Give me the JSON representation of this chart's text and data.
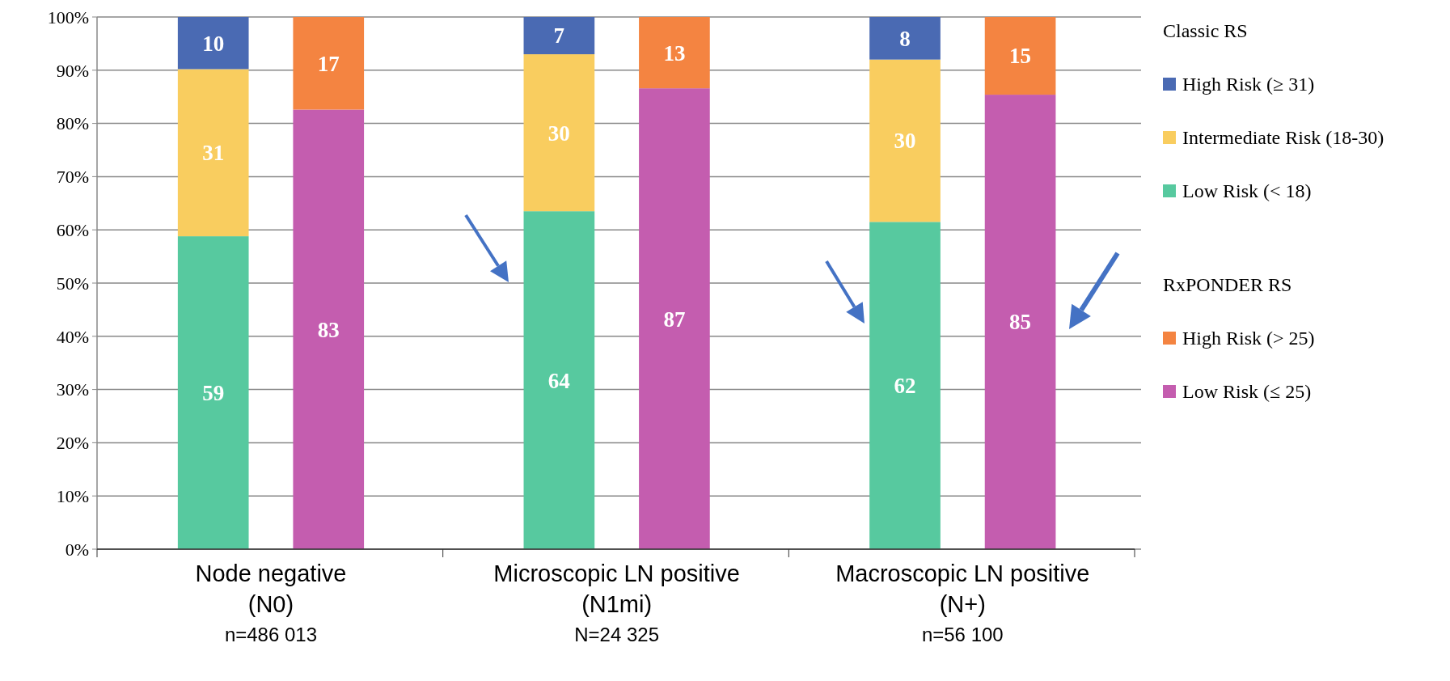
{
  "chart_data": {
    "type": "bar",
    "stacked": true,
    "categories": [
      "Node negative\n(N0)\nn=486 013",
      null,
      null,
      "Microscopic LN positive\n(N1mi)\nN=24 325",
      null,
      null,
      "Macroscopic LN positive\n(N+)\nn=56 100",
      null,
      null
    ],
    "series": [
      {
        "name": "Low Risk (< 18)",
        "color": "#57c99f",
        "values": [
          58.8,
          null,
          null,
          63.5,
          null,
          null,
          61.5,
          null,
          null
        ],
        "value_labels": [
          "59",
          null,
          null,
          "64",
          null,
          null,
          "62",
          null,
          null
        ]
      },
      {
        "name": "Intermediate Risk (18-30)",
        "color": "#f9cd5f",
        "values": [
          31.4,
          null,
          null,
          29.5,
          null,
          null,
          30.5,
          null,
          null
        ],
        "value_labels": [
          "31",
          null,
          null,
          "30",
          null,
          null,
          "30",
          null,
          null
        ]
      },
      {
        "name": "High Risk (≥ 31)",
        "color": "#4a6ab3",
        "values": [
          9.8,
          null,
          null,
          7.0,
          null,
          null,
          8.0,
          null,
          null
        ],
        "value_labels": [
          "10",
          null,
          null,
          "7",
          null,
          null,
          "8",
          null,
          null
        ]
      },
      {
        "name": "Low Risk (≤ 25)",
        "color": "#c45daf",
        "values": [
          null,
          82.6,
          null,
          null,
          86.6,
          null,
          null,
          85.4,
          null
        ],
        "value_labels": [
          null,
          "83",
          null,
          null,
          "87",
          null,
          null,
          "85",
          null
        ]
      },
      {
        "name": "High Risk (> 25)",
        "color": "#f48441",
        "values": [
          null,
          17.4,
          null,
          null,
          13.4,
          null,
          null,
          14.6,
          null
        ],
        "value_labels": [
          null,
          "17",
          null,
          null,
          "13",
          null,
          null,
          "15",
          null
        ]
      }
    ],
    "ylim": [
      0,
      100
    ],
    "yticks": [
      {
        "value": 0,
        "label": "0%"
      },
      {
        "value": 10,
        "label": "10%"
      },
      {
        "value": 20,
        "label": "20%"
      },
      {
        "value": 30,
        "label": "30%"
      },
      {
        "value": 40,
        "label": "40%"
      },
      {
        "value": 50,
        "label": "50%"
      },
      {
        "value": 60,
        "label": "60%"
      },
      {
        "value": 70,
        "label": "70%"
      },
      {
        "value": 80,
        "label": "80%"
      },
      {
        "value": 90,
        "label": "90%"
      },
      {
        "value": 100,
        "label": "100%"
      }
    ],
    "grid": "y",
    "legend": "right",
    "legend_title": "Classic RS",
    "annotations": [
      "RxPONDER RS"
    ]
  }
}
